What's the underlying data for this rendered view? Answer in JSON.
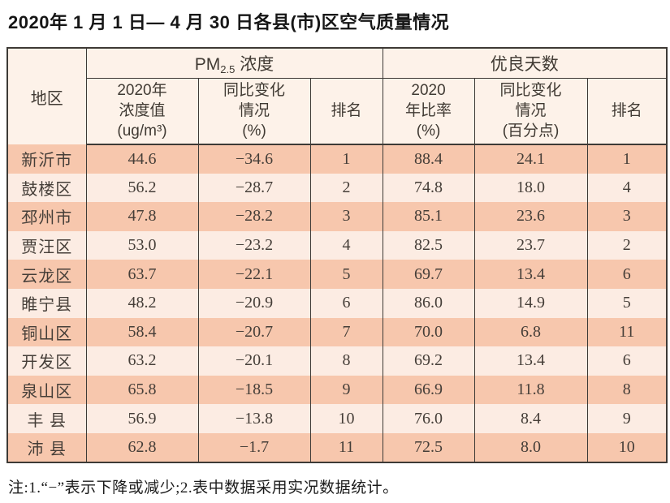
{
  "title": "2020年 1 月 1 日— 4 月 30 日各县(市)区空气质量情况",
  "note": "注:1.“−”表示下降或减少;2.表中数据采用实况数据统计。",
  "colors": {
    "row_dark": "#f7c7ad",
    "row_light": "#fcece3",
    "header_bg": "#fdf2e9",
    "border": "#3d3a36"
  },
  "table": {
    "corner_header": "地区",
    "pm_group": {
      "prefix": "PM",
      "sub": "2.5",
      "suffix": " 浓度"
    },
    "good_days_group": "优良天数",
    "subheaders": [
      "2020年\n浓度值\n(ug/m³)",
      "同比变化\n情况\n(%)",
      "排名",
      "2020\n年比率\n(%)",
      "同比变化\n情况\n(百分点)",
      "排名"
    ],
    "rows": [
      {
        "region": "新沂市",
        "values": [
          "44.6",
          "−34.6",
          "1",
          "88.4",
          "24.1",
          "1"
        ]
      },
      {
        "region": "鼓楼区",
        "values": [
          "56.2",
          "−28.7",
          "2",
          "74.8",
          "18.0",
          "4"
        ]
      },
      {
        "region": "邳州市",
        "values": [
          "47.8",
          "−28.2",
          "3",
          "85.1",
          "23.6",
          "3"
        ]
      },
      {
        "region": "贾汪区",
        "values": [
          "53.0",
          "−23.2",
          "4",
          "82.5",
          "23.7",
          "2"
        ]
      },
      {
        "region": "云龙区",
        "values": [
          "63.7",
          "−22.1",
          "5",
          "69.7",
          "13.4",
          "6"
        ]
      },
      {
        "region": "睢宁县",
        "values": [
          "48.2",
          "−20.9",
          "6",
          "86.0",
          "14.9",
          "5"
        ]
      },
      {
        "region": "铜山区",
        "values": [
          "58.4",
          "−20.7",
          "7",
          "70.0",
          "6.8",
          "11"
        ]
      },
      {
        "region": "开发区",
        "values": [
          "63.2",
          "−20.1",
          "8",
          "69.2",
          "13.4",
          "6"
        ]
      },
      {
        "region": "泉山区",
        "values": [
          "65.8",
          "−18.5",
          "9",
          "66.9",
          "11.8",
          "8"
        ]
      },
      {
        "region": "丰 县",
        "values": [
          "56.9",
          "−13.8",
          "10",
          "76.0",
          "8.4",
          "9"
        ]
      },
      {
        "region": "沛 县",
        "values": [
          "62.8",
          "−1.7",
          "11",
          "72.5",
          "8.0",
          "10"
        ]
      }
    ]
  }
}
